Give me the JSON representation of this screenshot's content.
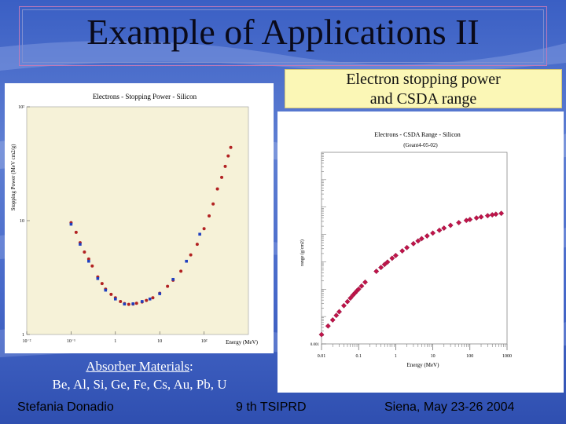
{
  "slide": {
    "title": "Example of Applications II",
    "callout_line1": "Electron stopping power",
    "callout_line2": "and CSDA range",
    "absorber_label": "Absorber Materials",
    "absorber_colon": ":",
    "absorber_list": "Be, Al, Si, Ge, Fe, Cs, Au, Pb, U",
    "footer_author": "Stefania Donadio",
    "footer_conference": "9 th TSIPRD",
    "footer_place_date": "Siena, May  23-26 2004"
  },
  "chart_data": [
    {
      "type": "scatter",
      "title": "Electrons - Stopping Power - Silicon",
      "xlabel": "Energy (MeV)",
      "ylabel": "Stopping Power (MeV cm2/g)",
      "xscale": "log",
      "yscale": "log",
      "xlim": [
        0.01,
        1000
      ],
      "ylim": [
        1,
        100
      ],
      "x_ticks": [
        "10⁻²",
        "10⁻¹",
        "1",
        "10",
        "10²"
      ],
      "y_ticks": [
        "1",
        "10",
        "10²"
      ],
      "series": [
        {
          "color": "#b22222",
          "marker": "circle",
          "x": [
            0.1,
            0.13,
            0.16,
            0.2,
            0.25,
            0.3,
            0.4,
            0.5,
            0.6,
            0.8,
            1.0,
            1.3,
            1.6,
            2,
            2.5,
            3,
            4,
            5,
            7,
            10,
            15,
            20,
            30,
            50,
            70,
            100,
            130,
            160,
            200,
            250,
            300,
            350,
            400
          ],
          "y": [
            9.6,
            7.9,
            6.4,
            5.3,
            4.6,
            4.0,
            3.2,
            2.8,
            2.5,
            2.25,
            2.1,
            1.95,
            1.87,
            1.84,
            1.85,
            1.88,
            1.93,
            1.99,
            2.1,
            2.3,
            2.65,
            3.0,
            3.6,
            5.0,
            6.2,
            8.5,
            11,
            14,
            19,
            24,
            30,
            37,
            44
          ]
        },
        {
          "color": "#1f3fbf",
          "marker": "square",
          "x": [
            0.1,
            0.16,
            0.25,
            0.4,
            0.6,
            1.0,
            1.6,
            2.5,
            4,
            6,
            10,
            20,
            40,
            80
          ],
          "y": [
            9.3,
            6.2,
            4.4,
            3.1,
            2.45,
            2.05,
            1.85,
            1.86,
            1.95,
            2.05,
            2.28,
            3.05,
            4.4,
            7.6
          ]
        }
      ]
    },
    {
      "type": "scatter",
      "title": "Electrons - CSDA Range - Silicon",
      "subtitle": "(Geant4-05-02)",
      "xlabel": "Energy (MeV)",
      "ylabel": "range (g/cm2)",
      "xscale": "log",
      "yscale": "log",
      "xlim": [
        0.01,
        1000
      ],
      "ylim": [
        0.001,
        10000
      ],
      "x_ticks": [
        "0.01",
        "0.1",
        "1",
        "10",
        "100",
        "1000"
      ],
      "y_ticks": [
        "0.001"
      ],
      "series": [
        {
          "color": "#c0144a",
          "marker": "diamond",
          "x": [
            0.01,
            0.015,
            0.02,
            0.025,
            0.03,
            0.04,
            0.05,
            0.06,
            0.07,
            0.08,
            0.09,
            0.1,
            0.12,
            0.15,
            0.3,
            0.4,
            0.5,
            0.6,
            0.8,
            1.0,
            1.5,
            2,
            3,
            4,
            5,
            7,
            10,
            15,
            20,
            30,
            50,
            80,
            100,
            150,
            200,
            300,
            400,
            500,
            700
          ],
          "y": [
            0.0022,
            0.0045,
            0.0075,
            0.011,
            0.015,
            0.025,
            0.035,
            0.047,
            0.06,
            0.073,
            0.087,
            0.1,
            0.13,
            0.18,
            0.45,
            0.62,
            0.8,
            0.98,
            1.35,
            1.7,
            2.5,
            3.3,
            4.6,
            5.8,
            7.0,
            8.8,
            11.2,
            14.2,
            17,
            21.5,
            27,
            32.5,
            35,
            40,
            43.5,
            48.5,
            52,
            55,
            59
          ]
        }
      ]
    }
  ]
}
